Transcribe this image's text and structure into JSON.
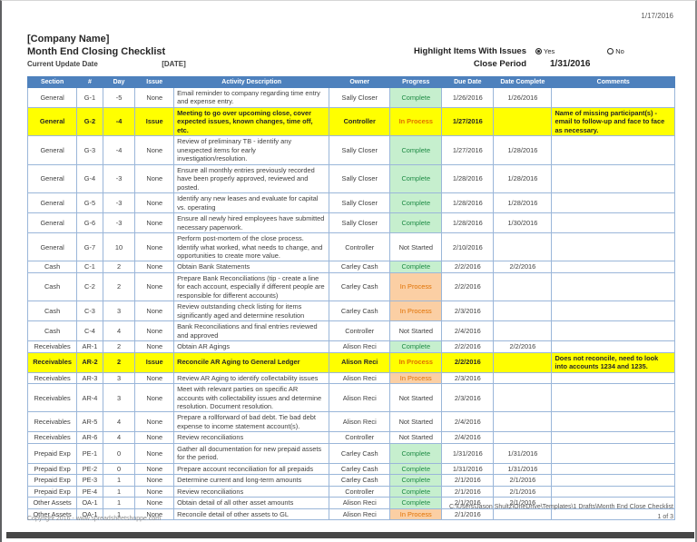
{
  "meta": {
    "print_date": "1/17/2016"
  },
  "header": {
    "company": "[Company Name]",
    "title": "Month End Closing Checklist",
    "update_label": "Current Update Date",
    "update_value": "[DATE]",
    "highlight_label": "Highlight Items With Issues",
    "yes_label": "Yes",
    "no_label": "No",
    "close_period_label": "Close Period",
    "close_period_value": "1/31/2016",
    "highlight_selected": "Yes"
  },
  "colors": {
    "header-blue": "#4e81bd",
    "grid-border": "#9ab6d9",
    "hl-yellow": "#ffff00",
    "complete-bg": "#c6efce",
    "complete-text": "#1e8a44",
    "inprocess-bg": "#fbcfa4",
    "inprocess-text": "#e07000"
  },
  "table": {
    "columns": [
      "Section",
      "#",
      "Day",
      "Issue",
      "Activity Description",
      "Owner",
      "Progress",
      "Due Date",
      "Date Complete",
      "Comments"
    ],
    "rows": [
      {
        "section": "General",
        "num": "G-1",
        "day": -5,
        "issue": "None",
        "activity": "Email reminder to company regarding time entry and expense entry.",
        "owner": "Sally Closer",
        "progress": "Complete",
        "due": "1/26/2016",
        "complete": "1/26/2016",
        "comments": "",
        "highlight": false
      },
      {
        "section": "General",
        "num": "G-2",
        "day": -4,
        "issue": "Issue",
        "activity": "Meeting to go over upcoming close, cover expected issues, known changes, time off, etc.",
        "owner": "Controller",
        "progress": "In Process",
        "due": "1/27/2016",
        "complete": "",
        "comments": "Name of missing participant(s) - email to follow-up and face to face as necessary.",
        "highlight": true
      },
      {
        "section": "General",
        "num": "G-3",
        "day": -4,
        "issue": "None",
        "activity": "Review of preliminary TB - identify any unexpected items for early investigation/resolution.",
        "owner": "Sally Closer",
        "progress": "Complete",
        "due": "1/27/2016",
        "complete": "1/28/2016",
        "comments": "",
        "highlight": false
      },
      {
        "section": "General",
        "num": "G-4",
        "day": -3,
        "issue": "None",
        "activity": "Ensure all monthly entries previously recorded have been properly approved, reviewed and posted.",
        "owner": "Sally Closer",
        "progress": "Complete",
        "due": "1/28/2016",
        "complete": "1/28/2016",
        "comments": "",
        "highlight": false
      },
      {
        "section": "General",
        "num": "G-5",
        "day": -3,
        "issue": "None",
        "activity": "Identify any new leases and evaluate for capital vs. operating",
        "owner": "Sally Closer",
        "progress": "Complete",
        "due": "1/28/2016",
        "complete": "1/28/2016",
        "comments": "",
        "highlight": false
      },
      {
        "section": "General",
        "num": "G-6",
        "day": -3,
        "issue": "None",
        "activity": "Ensure all newly hired employees have submitted necessary paperwork.",
        "owner": "Sally Closer",
        "progress": "Complete",
        "due": "1/28/2016",
        "complete": "1/30/2016",
        "comments": "",
        "highlight": false
      },
      {
        "section": "General",
        "num": "G-7",
        "day": 10,
        "issue": "None",
        "activity": "Perform post-mortem of the close process.  Identify what worked, what needs to change, and opportunities to create more value.",
        "owner": "Controller",
        "progress": "Not Started",
        "due": "2/10/2016",
        "complete": "",
        "comments": "",
        "highlight": false
      },
      {
        "section": "Cash",
        "num": "C-1",
        "day": 2,
        "issue": "None",
        "activity": "Obtain Bank Statements",
        "owner": "Carley Cash",
        "progress": "Complete",
        "due": "2/2/2016",
        "complete": "2/2/2016",
        "comments": "",
        "highlight": false
      },
      {
        "section": "Cash",
        "num": "C-2",
        "day": 2,
        "issue": "None",
        "activity": "Prepare Bank Reconciliations (tip - create a line for each account, especially if different people are responsible for different accounts)",
        "owner": "Carley Cash",
        "progress": "In Process",
        "due": "2/2/2016",
        "complete": "",
        "comments": "",
        "highlight": false
      },
      {
        "section": "Cash",
        "num": "C-3",
        "day": 3,
        "issue": "None",
        "activity": "Review outstanding check listing for items significantly aged and determine resolution",
        "owner": "Carley Cash",
        "progress": "In Process",
        "due": "2/3/2016",
        "complete": "",
        "comments": "",
        "highlight": false
      },
      {
        "section": "Cash",
        "num": "C-4",
        "day": 4,
        "issue": "None",
        "activity": "Bank Reconciliations and final entries reviewed and approved",
        "owner": "Controller",
        "progress": "Not Started",
        "due": "2/4/2016",
        "complete": "",
        "comments": "",
        "highlight": false
      },
      {
        "section": "Receivables",
        "num": "AR-1",
        "day": 2,
        "issue": "None",
        "activity": "Obtain AR Agings",
        "owner": "Alison Reci",
        "progress": "Complete",
        "due": "2/2/2016",
        "complete": "2/2/2016",
        "comments": "",
        "highlight": false
      },
      {
        "section": "Receivables",
        "num": "AR-2",
        "day": 2,
        "issue": "Issue",
        "activity": "Reconcile AR Aging to General Ledger",
        "owner": "Alison Reci",
        "progress": "In Process",
        "due": "2/2/2016",
        "complete": "",
        "comments": "Does not reconcile, need to look into accounts 1234 and 1235.",
        "highlight": true
      },
      {
        "section": "Receivables",
        "num": "AR-3",
        "day": 3,
        "issue": "None",
        "activity": "Review AR Aging to identify collectability issues",
        "owner": "Alison Reci",
        "progress": "In Process",
        "due": "2/3/2016",
        "complete": "",
        "comments": "",
        "highlight": false
      },
      {
        "section": "Receivables",
        "num": "AR-4",
        "day": 3,
        "issue": "None",
        "activity": "Meet with relevant parties on specific AR accounts with collectability issues and determine resolution. Document resolution.",
        "owner": "Alison Reci",
        "progress": "Not Started",
        "due": "2/3/2016",
        "complete": "",
        "comments": "",
        "highlight": false
      },
      {
        "section": "Receivables",
        "num": "AR-5",
        "day": 4,
        "issue": "None",
        "activity": "Prepare a rollforward of bad debt.  Tie bad debt expense to income statement account(s).",
        "owner": "Alison Reci",
        "progress": "Not Started",
        "due": "2/4/2016",
        "complete": "",
        "comments": "",
        "highlight": false
      },
      {
        "section": "Receivables",
        "num": "AR-6",
        "day": 4,
        "issue": "None",
        "activity": "Review reconciliations",
        "owner": "Controller",
        "progress": "Not Started",
        "due": "2/4/2016",
        "complete": "",
        "comments": "",
        "highlight": false
      },
      {
        "section": "Prepaid Exp",
        "num": "PE-1",
        "day": 0,
        "issue": "None",
        "activity": "Gather all documentation for new prepaid assets for the period.",
        "owner": "Carley Cash",
        "progress": "Complete",
        "due": "1/31/2016",
        "complete": "1/31/2016",
        "comments": "",
        "highlight": false
      },
      {
        "section": "Prepaid Exp",
        "num": "PE-2",
        "day": 0,
        "issue": "None",
        "activity": "Prepare account reconciliation for all prepaids",
        "owner": "Carley Cash",
        "progress": "Complete",
        "due": "1/31/2016",
        "complete": "1/31/2016",
        "comments": "",
        "highlight": false
      },
      {
        "section": "Prepaid Exp",
        "num": "PE-3",
        "day": 1,
        "issue": "None",
        "activity": "Determine current and long-term amounts",
        "owner": "Carley Cash",
        "progress": "Complete",
        "due": "2/1/2016",
        "complete": "2/1/2016",
        "comments": "",
        "highlight": false
      },
      {
        "section": "Prepaid Exp",
        "num": "PE-4",
        "day": 1,
        "issue": "None",
        "activity": "Review reconciliations",
        "owner": "Controller",
        "progress": "Complete",
        "due": "2/1/2016",
        "complete": "2/1/2016",
        "comments": "",
        "highlight": false
      },
      {
        "section": "Other Assets",
        "num": "OA-1",
        "day": 1,
        "issue": "None",
        "activity": "Obtain detail of all other asset amounts",
        "owner": "Alison Reci",
        "progress": "Complete",
        "due": "2/1/2016",
        "complete": "2/1/2016",
        "comments": "",
        "highlight": false
      },
      {
        "section": "Other Assets",
        "num": "OA-1",
        "day": 1,
        "issue": "None",
        "activity": "Reconcile detail of other assets to GL",
        "owner": "Alison Reci",
        "progress": "In Process",
        "due": "2/1/2016",
        "complete": "",
        "comments": "",
        "highlight": false
      }
    ]
  },
  "footer": {
    "copyright": "Copyright 2016 - www.spreadsheetshoppe.com",
    "file_path": "C:\\Users\\Jason Shultz\\OneDrive\\Templates\\1 Drafts\\Month End Close Checklist",
    "page_number": "1 of 3"
  }
}
